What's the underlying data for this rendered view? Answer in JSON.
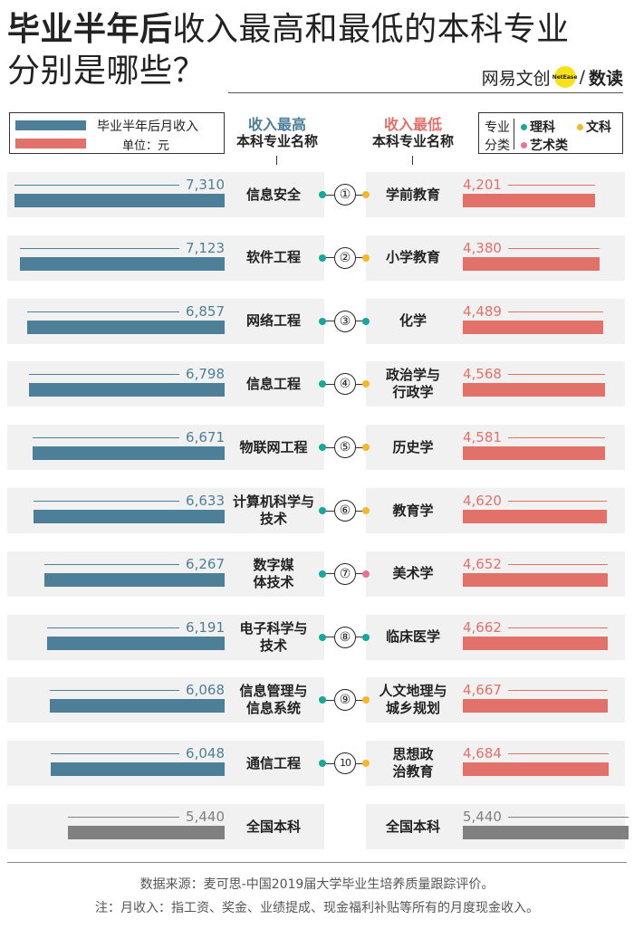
{
  "title": {
    "line1_a": "毕业半年后",
    "line1_b": "收入",
    "line1_c": "最高",
    "line1_d": "和",
    "line1_e": "最低",
    "line1_f": "的本科专业",
    "line2": "分别是哪些？"
  },
  "brand": {
    "name": "网易文创",
    "badge": "NetEase",
    "sub": "数读",
    "slash": "/"
  },
  "legend": {
    "series_label": "毕业半年后月收入",
    "unit_label": "单位：元"
  },
  "headers": {
    "left_title": "收入最高",
    "left_sub": "本科专业名称",
    "right_title": "收入最低",
    "right_sub": "本科专业名称"
  },
  "categories_legend": {
    "label_line1": "专业",
    "label_line2": "分类",
    "items": [
      {
        "label": "理科",
        "color": "#18a89a"
      },
      {
        "label": "文科",
        "color": "#f5b72b"
      },
      {
        "label": "艺术类",
        "color": "#e672a0"
      }
    ]
  },
  "colors": {
    "high": "#4e7f98",
    "low": "#e2716a",
    "national": "#808080"
  },
  "chart_data": {
    "type": "bar",
    "unit": "元",
    "xlim": [
      0,
      7310
    ],
    "rows": [
      {
        "rank": "①",
        "high_name": "信息安全",
        "high_value": 7310,
        "high_cat": "理科",
        "low_name": "学前教育",
        "low_value": 4201,
        "low_cat": "文科"
      },
      {
        "rank": "②",
        "high_name": "软件工程",
        "high_value": 7123,
        "high_cat": "理科",
        "low_name": "小学教育",
        "low_value": 4380,
        "low_cat": "文科"
      },
      {
        "rank": "③",
        "high_name": "网络工程",
        "high_value": 6857,
        "high_cat": "理科",
        "low_name": "化学",
        "low_value": 4489,
        "low_cat": "理科"
      },
      {
        "rank": "④",
        "high_name": "信息工程",
        "high_value": 6798,
        "high_cat": "理科",
        "low_name": "政治学与行政学",
        "low_value": 4568,
        "low_cat": "文科"
      },
      {
        "rank": "⑤",
        "high_name": "物联网工程",
        "high_value": 6671,
        "high_cat": "理科",
        "low_name": "历史学",
        "low_value": 4581,
        "low_cat": "文科"
      },
      {
        "rank": "⑥",
        "high_name": "计算机科学与技术",
        "high_value": 6633,
        "high_cat": "理科",
        "low_name": "教育学",
        "low_value": 4620,
        "low_cat": "文科"
      },
      {
        "rank": "⑦",
        "high_name": "数字媒体技术",
        "high_value": 6267,
        "high_cat": "理科",
        "low_name": "美术学",
        "low_value": 4652,
        "low_cat": "艺术类"
      },
      {
        "rank": "⑧",
        "high_name": "电子科学与技术",
        "high_value": 6191,
        "high_cat": "理科",
        "low_name": "临床医学",
        "low_value": 4662,
        "low_cat": "理科"
      },
      {
        "rank": "⑨",
        "high_name": "信息管理与信息系统",
        "high_value": 6068,
        "high_cat": "理科",
        "low_name": "人文地理与城乡规划",
        "low_value": 4667,
        "low_cat": "文科"
      },
      {
        "rank": "⑩",
        "high_name": "通信工程",
        "high_value": 6048,
        "high_cat": "理科",
        "low_name": "思想政治教育",
        "low_value": 4684,
        "low_cat": "文科"
      }
    ],
    "national": {
      "name": "全国本科",
      "value": 5440
    }
  },
  "footer": {
    "source": "数据来源：麦可思-中国2019届大学毕业生培养质量跟踪评价。",
    "note": "注：月收入：指工资、奖金、业绩提成、现金福利补贴等所有的月度现金收入。"
  }
}
